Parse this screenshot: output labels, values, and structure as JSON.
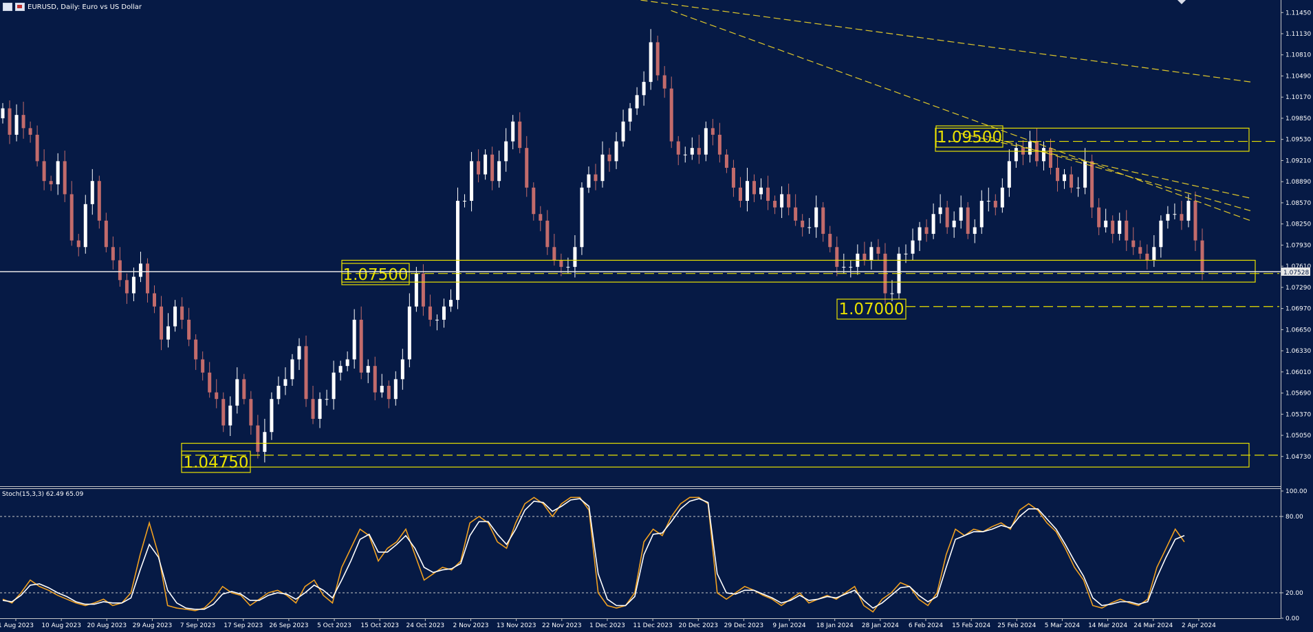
{
  "header": {
    "title": "EURUSD, Daily:  Euro vs US Dollar"
  },
  "stoch_label": "Stoch(15,3,3) 62.49 65.09",
  "current_price_label": "1.07528",
  "colors": {
    "background": "#061a45",
    "bull_candle": "#ffffff",
    "bear_candle": "#c26b6b",
    "level": "#e9e100",
    "trend": "#e0c82a",
    "stoch_main": "#f0a020",
    "stoch_signal": "#ffffff"
  },
  "chart_data": [
    {
      "type": "candlestick",
      "symbol": "EURUSD",
      "timeframe": "Daily",
      "ylim": [
        1.0428,
        1.1164
      ],
      "price_ticks": [
        "1.11450",
        "1.11130",
        "1.10810",
        "1.10490",
        "1.10170",
        "1.09850",
        "1.09530",
        "1.09210",
        "1.08890",
        "1.08570",
        "1.08250",
        "1.07930",
        "1.07610",
        "1.07290",
        "1.06970",
        "1.06650",
        "1.06330",
        "1.06010",
        "1.05690",
        "1.05370",
        "1.05050",
        "1.04730"
      ],
      "date_labels": [
        "1 Aug 2023",
        "10 Aug 2023",
        "20 Aug 2023",
        "29 Aug 2023",
        "7 Sep 2023",
        "17 Sep 2023",
        "26 Sep 2023",
        "5 Oct 2023",
        "15 Oct 2023",
        "24 Oct 2023",
        "2 Nov 2023",
        "13 Nov 2023",
        "22 Nov 2023",
        "1 Dec 2023",
        "11 Dec 2023",
        "20 Dec 2023",
        "29 Dec 2023",
        "9 Jan 2024",
        "18 Jan 2024",
        "28 Jan 2024",
        "6 Feb 2024",
        "15 Feb 2024",
        "25 Feb 2024",
        "5 Mar 2024",
        "14 Mar 2024",
        "24 Mar 2024",
        "2 Apr 2024"
      ],
      "close_path": [
        1.1,
        1.096,
        1.099,
        1.097,
        1.096,
        1.092,
        1.089,
        1.0885,
        1.092,
        1.087,
        1.08,
        1.079,
        1.0855,
        1.089,
        1.083,
        1.079,
        1.077,
        1.074,
        1.072,
        1.0745,
        1.0765,
        1.072,
        1.07,
        1.065,
        1.067,
        1.07,
        1.068,
        1.065,
        1.062,
        1.06,
        1.057,
        1.056,
        1.052,
        1.055,
        1.059,
        1.056,
        1.052,
        1.048,
        1.051,
        1.056,
        1.058,
        1.059,
        1.062,
        1.064,
        1.056,
        1.053,
        1.056,
        1.056,
        1.06,
        1.061,
        1.062,
        1.068,
        1.06,
        1.061,
        1.057,
        1.058,
        1.056,
        1.059,
        1.062,
        1.07,
        1.075,
        1.07,
        1.068,
        1.068,
        1.07,
        1.071,
        1.086,
        1.086,
        1.092,
        1.09,
        1.093,
        1.089,
        1.092,
        1.095,
        1.098,
        1.094,
        1.088,
        1.084,
        1.083,
        1.079,
        1.077,
        1.076,
        1.076,
        1.079,
        1.088,
        1.09,
        1.089,
        1.093,
        1.092,
        1.095,
        1.098,
        1.1,
        1.102,
        1.104,
        1.11,
        1.105,
        1.103,
        1.095,
        1.093,
        1.093,
        1.094,
        1.093,
        1.097,
        1.096,
        1.093,
        1.091,
        1.088,
        1.086,
        1.089,
        1.087,
        1.088,
        1.086,
        1.085,
        1.087,
        1.085,
        1.083,
        1.082,
        1.082,
        1.085,
        1.081,
        1.079,
        1.076,
        1.076,
        1.076,
        1.078,
        1.077,
        1.079,
        1.078,
        1.072,
        1.072,
        1.078,
        1.078,
        1.08,
        1.082,
        1.081,
        1.084,
        1.085,
        1.082,
        1.083,
        1.085,
        1.081,
        1.082,
        1.086,
        1.086,
        1.085,
        1.088,
        1.092,
        1.094,
        1.093,
        1.095,
        1.092,
        1.094,
        1.091,
        1.089,
        1.09,
        1.088,
        1.088,
        1.092,
        1.085,
        1.082,
        1.083,
        1.081,
        1.083,
        1.08,
        1.079,
        1.078,
        1.077,
        1.079,
        1.083,
        1.084,
        1.084,
        1.083,
        1.086,
        1.08,
        1.0752
      ],
      "levels": [
        {
          "label": "1.09500",
          "value": 1.095,
          "zone": [
            1.0935,
            1.097
          ]
        },
        {
          "label": "1.07500",
          "value": 1.075,
          "zone": [
            1.0737,
            1.077
          ]
        },
        {
          "label": "1.07000",
          "value": 1.07,
          "zone": null
        },
        {
          "label": "1.04750",
          "value": 1.0475,
          "zone": [
            1.0457,
            1.0493
          ]
        }
      ],
      "trendlines": [
        {
          "x": [
            0.4843,
            0.9764
          ],
          "y": [
            1.1168,
            1.104
          ]
        },
        {
          "x": [
            0.524,
            0.9764
          ],
          "y": [
            1.1148,
            1.083
          ]
        },
        {
          "x": [
            0.75,
            0.9764
          ],
          "y": [
            1.0962,
            1.0864
          ]
        },
        {
          "x": [
            0.77,
            0.9764
          ],
          "y": [
            1.0958,
            1.0845
          ]
        }
      ]
    },
    {
      "type": "line",
      "name": "Stoch(15,3,3)",
      "ylim": [
        0,
        100
      ],
      "y_ticks": [
        "100.00",
        "80.00",
        "20.00",
        "0.00"
      ],
      "levels": [
        80,
        20
      ],
      "series": [
        {
          "name": "main",
          "values": [
            15,
            12,
            20,
            30,
            25,
            22,
            18,
            15,
            12,
            10,
            12,
            15,
            10,
            12,
            20,
            50,
            75,
            50,
            10,
            8,
            7,
            6,
            8,
            15,
            25,
            20,
            18,
            10,
            15,
            20,
            22,
            18,
            12,
            25,
            30,
            18,
            12,
            40,
            55,
            70,
            65,
            45,
            55,
            60,
            70,
            50,
            30,
            35,
            40,
            38,
            45,
            75,
            80,
            75,
            60,
            55,
            75,
            90,
            95,
            90,
            80,
            90,
            95,
            95,
            85,
            20,
            10,
            8,
            10,
            20,
            60,
            70,
            65,
            80,
            90,
            95,
            95,
            90,
            20,
            15,
            20,
            25,
            22,
            18,
            15,
            10,
            15,
            20,
            12,
            15,
            18,
            15,
            20,
            25,
            10,
            5,
            15,
            20,
            28,
            25,
            15,
            10,
            20,
            50,
            70,
            65,
            70,
            68,
            72,
            75,
            70,
            85,
            90,
            85,
            75,
            68,
            55,
            40,
            30,
            10,
            8,
            12,
            15,
            12,
            10,
            15,
            40,
            55,
            70,
            60
          ]
        },
        {
          "name": "signal",
          "values": [
            14,
            13,
            18,
            26,
            27,
            24,
            20,
            17,
            13,
            11,
            11,
            13,
            12,
            12,
            16,
            38,
            58,
            48,
            22,
            12,
            8,
            7,
            7,
            11,
            19,
            21,
            19,
            14,
            14,
            18,
            20,
            19,
            15,
            20,
            26,
            22,
            16,
            30,
            45,
            62,
            66,
            52,
            52,
            58,
            65,
            55,
            40,
            36,
            38,
            39,
            43,
            65,
            76,
            76,
            66,
            58,
            70,
            85,
            92,
            91,
            84,
            88,
            93,
            94,
            88,
            35,
            15,
            10,
            10,
            17,
            50,
            66,
            67,
            76,
            86,
            92,
            94,
            91,
            35,
            20,
            19,
            22,
            22,
            19,
            16,
            12,
            14,
            18,
            14,
            15,
            17,
            16,
            19,
            22,
            14,
            8,
            12,
            18,
            24,
            25,
            18,
            13,
            17,
            40,
            62,
            65,
            68,
            68,
            70,
            73,
            71,
            80,
            86,
            86,
            78,
            70,
            58,
            45,
            33,
            16,
            10,
            11,
            13,
            13,
            11,
            13,
            32,
            48,
            62,
            65
          ]
        }
      ]
    }
  ]
}
